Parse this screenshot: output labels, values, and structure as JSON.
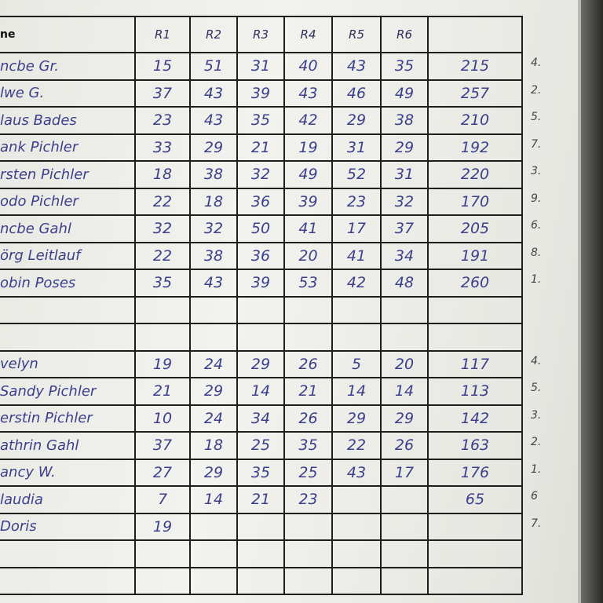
{
  "header": {
    "name_label": "ne",
    "rounds": [
      "R1",
      "R2",
      "R3",
      "R4",
      "R5",
      "R6"
    ],
    "total_label": ""
  },
  "rows": [
    {
      "name": "ncbe Gr.",
      "scores": [
        "15",
        "51",
        "31",
        "40",
        "43",
        "35"
      ],
      "total": "215",
      "rank": "4."
    },
    {
      "name": "lwe G.",
      "scores": [
        "37",
        "43",
        "39",
        "43",
        "46",
        "49"
      ],
      "total": "257",
      "rank": "2."
    },
    {
      "name": "laus Bades",
      "scores": [
        "23",
        "43",
        "35",
        "42",
        "29",
        "38"
      ],
      "total": "210",
      "rank": "5."
    },
    {
      "name": "ank Pichler",
      "scores": [
        "33",
        "29",
        "21",
        "19",
        "31",
        "29"
      ],
      "total": "192",
      "rank": "7."
    },
    {
      "name": "rsten Pichler",
      "scores": [
        "18",
        "38",
        "32",
        "49",
        "52",
        "31"
      ],
      "total": "220",
      "rank": "3."
    },
    {
      "name": "odo Pichler",
      "scores": [
        "22",
        "18",
        "36",
        "39",
        "23",
        "32"
      ],
      "total": "170",
      "rank": "9."
    },
    {
      "name": "ncbe Gahl",
      "scores": [
        "32",
        "32",
        "50",
        "41",
        "17",
        "37"
      ],
      "total": "205",
      "rank": "6."
    },
    {
      "name": "örg Leitlauf",
      "scores": [
        "22",
        "38",
        "36",
        "20",
        "41",
        "34"
      ],
      "total": "191",
      "rank": "8."
    },
    {
      "name": "obin Poses",
      "scores": [
        "35",
        "43",
        "39",
        "53",
        "42",
        "48"
      ],
      "total": "260",
      "rank": "1."
    },
    {
      "name": "",
      "scores": [
        "",
        "",
        "",
        "",
        "",
        ""
      ],
      "total": "",
      "rank": ""
    },
    {
      "name": "",
      "scores": [
        "",
        "",
        "",
        "",
        "",
        ""
      ],
      "total": "",
      "rank": ""
    },
    {
      "name": "velyn",
      "scores": [
        "19",
        "24",
        "29",
        "26",
        "5",
        "20"
      ],
      "total": "117",
      "rank": "4."
    },
    {
      "name": "Sandy Pichler",
      "scores": [
        "21",
        "29",
        "14",
        "21",
        "14",
        "14"
      ],
      "total": "113",
      "rank": "5."
    },
    {
      "name": "erstin Pichler",
      "scores": [
        "10",
        "24",
        "34",
        "26",
        "29",
        "29"
      ],
      "total": "142",
      "rank": "3."
    },
    {
      "name": "athrin Gahl",
      "scores": [
        "37",
        "18",
        "25",
        "35",
        "22",
        "26"
      ],
      "total": "163",
      "rank": "2."
    },
    {
      "name": "ancy W.",
      "scores": [
        "27",
        "29",
        "35",
        "25",
        "43",
        "17"
      ],
      "total": "176",
      "rank": "1."
    },
    {
      "name": "laudia",
      "scores": [
        "7",
        "14",
        "21",
        "23",
        "",
        ""
      ],
      "total": "65",
      "rank": "6"
    },
    {
      "name": "Doris",
      "scores": [
        "19",
        "",
        "",
        "",
        "",
        ""
      ],
      "total": "",
      "rank": "7."
    },
    {
      "name": "",
      "scores": [
        "",
        "",
        "",
        "",
        "",
        ""
      ],
      "total": "",
      "rank": ""
    },
    {
      "name": "",
      "scores": [
        "",
        "",
        "",
        "",
        "",
        ""
      ],
      "total": "",
      "rank": ""
    }
  ]
}
